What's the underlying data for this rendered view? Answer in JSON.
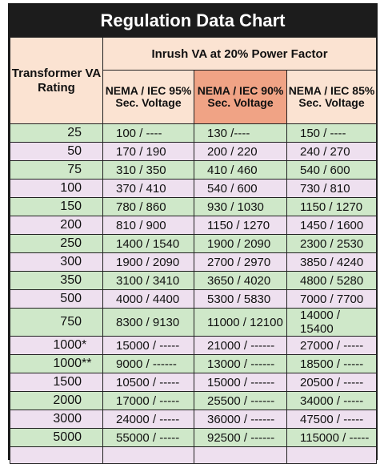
{
  "title": "Regulation Data Chart",
  "header": {
    "rating_label": "Transformer VA Rating",
    "group_label": "Inrush VA at 20% Power Factor",
    "columns": [
      {
        "label": "NEMA / IEC 95% Sec. Voltage"
      },
      {
        "label": "NEMA / IEC 90% Sec. Voltage"
      },
      {
        "label": "NEMA / IEC 85% Sec. Voltage"
      }
    ]
  },
  "highlight_color": "#f0a385",
  "row_colors": {
    "green": "#cfe8c9",
    "lavender": "#eee0ef"
  },
  "rows": [
    {
      "va": "25",
      "mark": "",
      "v95": "100 / ----",
      "v90": "130 /----",
      "v85": "150 / ----"
    },
    {
      "va": "50",
      "mark": "",
      "v95": "170 / 190",
      "v90": "200 / 220",
      "v85": "240 / 270"
    },
    {
      "va": "75",
      "mark": "",
      "v95": "310 / 350",
      "v90": "410 / 460",
      "v85": "540 / 600"
    },
    {
      "va": "100",
      "mark": "",
      "v95": "370 / 410",
      "v90": "540 / 600",
      "v85": "730 / 810"
    },
    {
      "va": "150",
      "mark": "",
      "v95": "780 / 860",
      "v90": "930 / 1030",
      "v85": "1150 / 1270"
    },
    {
      "va": "200",
      "mark": "",
      "v95": "810 / 900",
      "v90": "1150 / 1270",
      "v85": "1450 / 1600"
    },
    {
      "va": "250",
      "mark": "",
      "v95": "1400 / 1540",
      "v90": "1900 / 2090",
      "v85": "2300 / 2530"
    },
    {
      "va": "300",
      "mark": "",
      "v95": "1900 / 2090",
      "v90": "2700 / 2970",
      "v85": "3850 / 4240"
    },
    {
      "va": "350",
      "mark": "",
      "v95": "3100 / 3410",
      "v90": "3650 / 4020",
      "v85": "4800 / 5280"
    },
    {
      "va": "500",
      "mark": "",
      "v95": "4000 / 4400",
      "v90": "5300 / 5830",
      "v85": "7000 / 7700"
    },
    {
      "va": "750",
      "mark": "",
      "v95": "8300 / 9130",
      "v90": "11000 / 12100",
      "v85": "14000 / 15400"
    },
    {
      "va": "1000",
      "mark": " *",
      "v95": "15000 / -----",
      "v90": "21000 / ------",
      "v85": "27000 / -----"
    },
    {
      "va": "1000",
      "mark": " **",
      "v95": "9000 / ------",
      "v90": "13000 / ------",
      "v85": "18500 / -----"
    },
    {
      "va": "1500",
      "mark": "",
      "v95": "10500 / -----",
      "v90": "15000 / ------",
      "v85": "20500 / -----"
    },
    {
      "va": "2000",
      "mark": "",
      "v95": "17000 / -----",
      "v90": "25500 / ------",
      "v85": "34000 / -----"
    },
    {
      "va": "3000",
      "mark": "",
      "v95": "24000 / -----",
      "v90": "36000 / ------",
      "v85": "47500 / -----"
    },
    {
      "va": "5000",
      "mark": "",
      "v95": "55000 / -----",
      "v90": "92500 / ------",
      "v85": "115000 / -----"
    }
  ]
}
